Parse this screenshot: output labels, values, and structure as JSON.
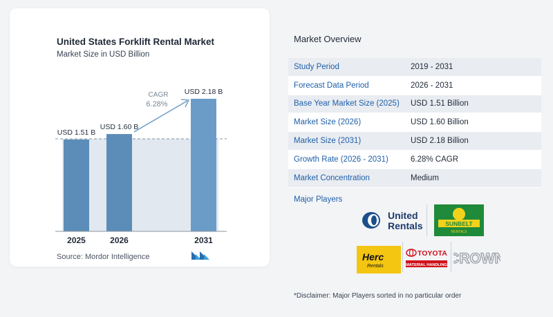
{
  "chart_data": {
    "type": "bar",
    "title": "United States Forklift Rental Market",
    "subtitle": "Market Size in USD Billion",
    "categories": [
      "2025",
      "2026",
      "2031"
    ],
    "values": [
      1.51,
      1.6,
      2.18
    ],
    "value_labels": [
      "USD 1.51 B",
      "USD 1.60 B",
      "USD 2.18 B"
    ],
    "annotation": {
      "label": "CAGR",
      "value": "6.28%"
    },
    "colors": {
      "bar": "#5b8db8",
      "bar_highlight": "#6a9cc7"
    },
    "xlabel": "",
    "ylabel": "",
    "grid": false,
    "legend": false
  },
  "source": "Source: Mordor Intelligence",
  "overview": {
    "heading": "Market Overview",
    "rows": [
      {
        "label": "Study Period",
        "value": "2019 - 2031"
      },
      {
        "label": "Forecast Data Period",
        "value": "2026 - 2031"
      },
      {
        "label": "Base Year Market Size (2025)",
        "value": "USD 1.51 Billion"
      },
      {
        "label": "Market Size (2026)",
        "value": "USD 1.60 Billion"
      },
      {
        "label": "Market Size (2031)",
        "value": "USD 2.18 Billion"
      },
      {
        "label": "Growth Rate (2026 - 2031)",
        "value": "6.28% CAGR"
      },
      {
        "label": "Market Concentration",
        "value": "Medium"
      }
    ],
    "major_players_label": "Major Players"
  },
  "players": [
    "United",
    "Rentals",
    "SUNBELT",
    "RENTALS",
    "Herc",
    "Rentals",
    "TOYOTA",
    "MATERIAL HANDLING",
    "CROWN"
  ],
  "disclaimer": "*Disclaimer: Major Players sorted in no particular order"
}
